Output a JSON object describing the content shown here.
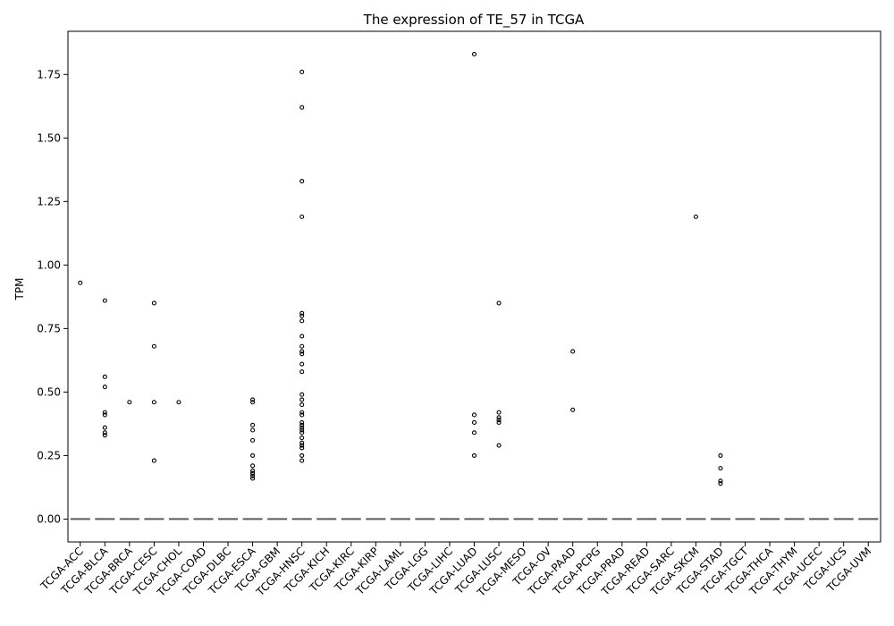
{
  "chart_data": {
    "type": "boxplot",
    "title": "The expression of TE_57 in TCGA",
    "xlabel": "",
    "ylabel": "TPM",
    "ylim": [
      -0.09,
      1.92
    ],
    "yticks": [
      0.0,
      0.25,
      0.5,
      0.75,
      1.0,
      1.25,
      1.5,
      1.75
    ],
    "ytick_labels": [
      "0.00",
      "0.25",
      "0.50",
      "0.75",
      "1.00",
      "1.25",
      "1.50",
      "1.75"
    ],
    "grid": false,
    "colors": {
      "median_line": "#5a5a5a",
      "outlier_edge": "#000000",
      "axis": "#000000"
    },
    "categories": [
      "TCGA-ACC",
      "TCGA-BLCA",
      "TCGA-BRCA",
      "TCGA-CESC",
      "TCGA-CHOL",
      "TCGA-COAD",
      "TCGA-DLBC",
      "TCGA-ESCA",
      "TCGA-GBM",
      "TCGA-HNSC",
      "TCGA-KICH",
      "TCGA-KIRC",
      "TCGA-KIRP",
      "TCGA-LAML",
      "TCGA-LGG",
      "TCGA-LIHC",
      "TCGA-LUAD",
      "TCGA-LUSC",
      "TCGA-MESO",
      "TCGA-OV",
      "TCGA-PAAD",
      "TCGA-PCPG",
      "TCGA-PRAD",
      "TCGA-READ",
      "TCGA-SARC",
      "TCGA-SKCM",
      "TCGA-STAD",
      "TCGA-TGCT",
      "TCGA-THCA",
      "TCGA-THYM",
      "TCGA-UCEC",
      "TCGA-UCS",
      "TCGA-UVM"
    ],
    "box_summary": {
      "q1": 0,
      "median": 0,
      "q3": 0
    },
    "outliers": [
      [
        0.93
      ],
      [
        0.86,
        0.56,
        0.52,
        0.42,
        0.41,
        0.36,
        0.34,
        0.33
      ],
      [
        0.46
      ],
      [
        0.85,
        0.68,
        0.46,
        0.23
      ],
      [
        0.46
      ],
      [],
      [],
      [
        0.47,
        0.46,
        0.37,
        0.35,
        0.31,
        0.25,
        0.21,
        0.19,
        0.18,
        0.18,
        0.17,
        0.16
      ],
      [],
      [
        1.76,
        1.62,
        1.33,
        1.19,
        0.81,
        0.8,
        0.78,
        0.72,
        0.68,
        0.66,
        0.65,
        0.61,
        0.58,
        0.49,
        0.47,
        0.45,
        0.42,
        0.41,
        0.38,
        0.37,
        0.36,
        0.35,
        0.34,
        0.32,
        0.3,
        0.29,
        0.28,
        0.25,
        0.23
      ],
      [],
      [],
      [],
      [],
      [],
      [],
      [
        1.83,
        0.41,
        0.38,
        0.34,
        0.25
      ],
      [
        0.85,
        0.42,
        0.4,
        0.39,
        0.38,
        0.29
      ],
      [],
      [],
      [
        0.66,
        0.43
      ],
      [],
      [],
      [],
      [],
      [
        1.19
      ],
      [
        0.25,
        0.2,
        0.15,
        0.14
      ],
      [],
      [],
      [],
      [],
      [],
      []
    ]
  }
}
